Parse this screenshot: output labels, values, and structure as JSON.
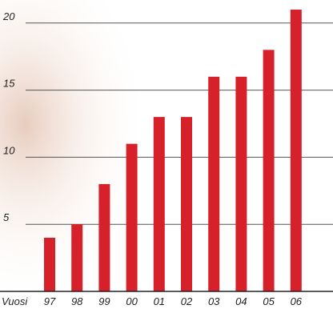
{
  "chart_data": {
    "type": "bar",
    "xlabel": "Vuosi",
    "ylabel": "",
    "categories": [
      "97",
      "98",
      "99",
      "00",
      "01",
      "02",
      "03",
      "04",
      "05",
      "06"
    ],
    "values": [
      4,
      5,
      8,
      11,
      13,
      13,
      16,
      16,
      18,
      21
    ],
    "y_ticks": [
      "5",
      "10",
      "15",
      "20"
    ],
    "ylim": [
      0,
      21
    ],
    "grid": true,
    "bar_color": "#d7212a",
    "grid_color": "#555555",
    "background_texture_color": "#c98d6e"
  }
}
